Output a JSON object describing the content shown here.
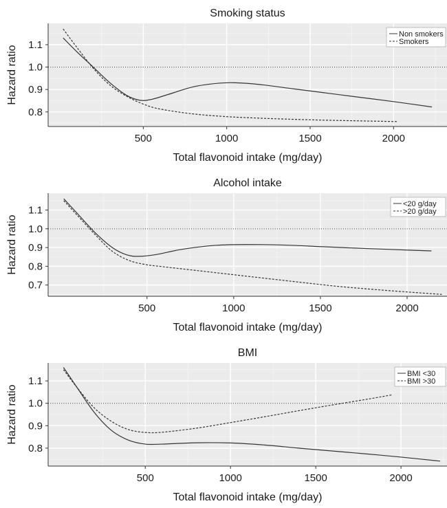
{
  "chart_data": [
    {
      "type": "line",
      "title": "Smoking status",
      "xlabel": "Total flavonoid intake (mg/day)",
      "ylabel": "Hazard ratio",
      "xlim": [
        -70,
        2320
      ],
      "ylim": [
        0.735,
        1.195
      ],
      "xticks": [
        500,
        1000,
        1500,
        2000
      ],
      "yticks": [
        0.8,
        0.9,
        1.0,
        1.1
      ],
      "yticks_labels": [
        "0.8",
        "0.9",
        "1.0",
        "1.1"
      ],
      "reference_line": 1.0,
      "grid": true,
      "legend_position": "top-right",
      "series": [
        {
          "name": "Non smokers",
          "style": "solid",
          "x": [
            20,
            100,
            200,
            300,
            400,
            480,
            550,
            650,
            800,
            950,
            1050,
            1200,
            1400,
            1600,
            1800,
            2000,
            2230
          ],
          "y": [
            1.13,
            1.07,
            1.0,
            0.93,
            0.874,
            0.852,
            0.856,
            0.878,
            0.912,
            0.928,
            0.93,
            0.922,
            0.903,
            0.884,
            0.865,
            0.846,
            0.822
          ]
        },
        {
          "name": "Smokers",
          "style": "dashed",
          "x": [
            20,
            100,
            200,
            300,
            400,
            500,
            600,
            800,
            1000,
            1200,
            1400,
            1600,
            1800,
            2020
          ],
          "y": [
            1.17,
            1.09,
            0.995,
            0.92,
            0.87,
            0.835,
            0.813,
            0.791,
            0.779,
            0.772,
            0.767,
            0.763,
            0.76,
            0.757
          ]
        }
      ]
    },
    {
      "type": "line",
      "title": "Alcohol intake",
      "xlabel": "Total flavonoid intake (mg/day)",
      "ylabel": "Hazard ratio",
      "xlim": [
        -70,
        2230
      ],
      "ylim": [
        0.64,
        1.19
      ],
      "xticks": [
        500,
        1000,
        1500,
        2000
      ],
      "yticks": [
        0.7,
        0.8,
        0.9,
        1.0,
        1.1
      ],
      "yticks_labels": [
        "0.7",
        "0.8",
        "0.9",
        "1.0",
        "1.1"
      ],
      "reference_line": 1.0,
      "grid": true,
      "legend_position": "top-right",
      "series": [
        {
          "name": "<20 g/day",
          "style": "solid",
          "x": [
            20,
            100,
            200,
            300,
            380,
            450,
            550,
            700,
            900,
            1100,
            1300,
            1500,
            1700,
            1900,
            2140
          ],
          "y": [
            1.16,
            1.08,
            0.98,
            0.9,
            0.862,
            0.853,
            0.862,
            0.89,
            0.912,
            0.916,
            0.913,
            0.905,
            0.897,
            0.89,
            0.882
          ]
        },
        {
          "name": ">20 g/day",
          "style": "dashed",
          "x": [
            20,
            100,
            200,
            300,
            400,
            500,
            600,
            800,
            1000,
            1200,
            1400,
            1600,
            1800,
            2000,
            2200
          ],
          "y": [
            1.15,
            1.07,
            0.97,
            0.88,
            0.83,
            0.808,
            0.797,
            0.776,
            0.755,
            0.734,
            0.713,
            0.693,
            0.677,
            0.663,
            0.65
          ]
        }
      ]
    },
    {
      "type": "line",
      "title": "BMI",
      "xlabel": "Total flavonoid intake (mg/day)",
      "ylabel": "Hazard ratio",
      "xlim": [
        -70,
        2270
      ],
      "ylim": [
        0.72,
        1.18
      ],
      "xticks": [
        500,
        1000,
        1500,
        2000
      ],
      "yticks": [
        0.8,
        0.9,
        1.0,
        1.1
      ],
      "yticks_labels": [
        "0.8",
        "0.9",
        "1.0",
        "1.1"
      ],
      "reference_line": 1.0,
      "grid": true,
      "legend_position": "top-right",
      "series": [
        {
          "name": "BMI <30",
          "style": "solid",
          "x": [
            20,
            100,
            200,
            300,
            400,
            500,
            600,
            800,
            1000,
            1200,
            1400,
            1600,
            1800,
            2000,
            2230
          ],
          "y": [
            1.16,
            1.07,
            0.96,
            0.88,
            0.836,
            0.818,
            0.818,
            0.824,
            0.823,
            0.814,
            0.8,
            0.787,
            0.774,
            0.76,
            0.742
          ]
        },
        {
          "name": "BMI >30",
          "style": "dashed",
          "x": [
            20,
            100,
            200,
            300,
            400,
            500,
            600,
            800,
            1000,
            1200,
            1400,
            1600,
            1800,
            1950
          ],
          "y": [
            1.15,
            1.07,
            0.98,
            0.92,
            0.883,
            0.87,
            0.871,
            0.889,
            0.914,
            0.94,
            0.967,
            0.993,
            1.018,
            1.038
          ]
        }
      ]
    }
  ]
}
